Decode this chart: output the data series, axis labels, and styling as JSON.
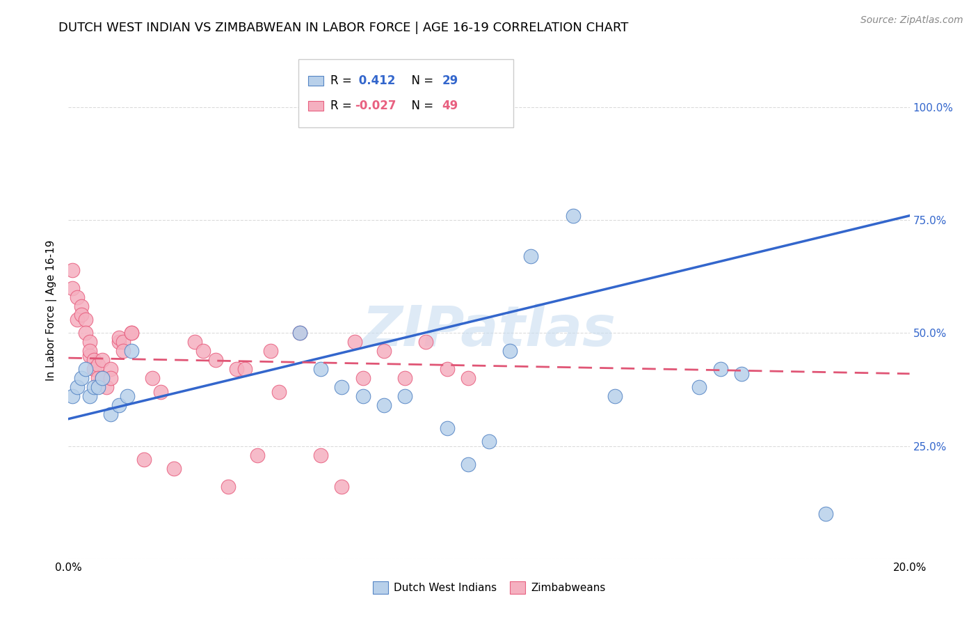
{
  "title": "DUTCH WEST INDIAN VS ZIMBABWEAN IN LABOR FORCE | AGE 16-19 CORRELATION CHART",
  "source": "Source: ZipAtlas.com",
  "ylabel": "In Labor Force | Age 16-19",
  "xlim": [
    0.0,
    0.2
  ],
  "ylim": [
    0.0,
    1.1
  ],
  "yticks": [
    0.0,
    0.25,
    0.5,
    0.75,
    1.0
  ],
  "ytick_labels": [
    "",
    "25.0%",
    "50.0%",
    "75.0%",
    "100.0%"
  ],
  "xticks": [
    0.0,
    0.05,
    0.1,
    0.15,
    0.2
  ],
  "xtick_labels": [
    "0.0%",
    "",
    "",
    "",
    "20.0%"
  ],
  "blue_R": 0.412,
  "blue_N": 29,
  "pink_R": -0.027,
  "pink_N": 49,
  "blue_scatter_x": [
    0.001,
    0.002,
    0.003,
    0.004,
    0.005,
    0.006,
    0.007,
    0.008,
    0.01,
    0.012,
    0.014,
    0.015,
    0.055,
    0.06,
    0.065,
    0.07,
    0.075,
    0.08,
    0.09,
    0.095,
    0.1,
    0.105,
    0.11,
    0.12,
    0.13,
    0.15,
    0.155,
    0.16,
    0.18
  ],
  "blue_scatter_y": [
    0.36,
    0.38,
    0.4,
    0.42,
    0.36,
    0.38,
    0.38,
    0.4,
    0.32,
    0.34,
    0.36,
    0.46,
    0.5,
    0.42,
    0.38,
    0.36,
    0.34,
    0.36,
    0.29,
    0.21,
    0.26,
    0.46,
    0.67,
    0.76,
    0.36,
    0.38,
    0.42,
    0.41,
    0.1
  ],
  "pink_scatter_x": [
    0.001,
    0.001,
    0.002,
    0.002,
    0.003,
    0.003,
    0.004,
    0.004,
    0.005,
    0.005,
    0.005,
    0.006,
    0.006,
    0.007,
    0.007,
    0.008,
    0.008,
    0.009,
    0.01,
    0.01,
    0.012,
    0.012,
    0.013,
    0.013,
    0.015,
    0.015,
    0.018,
    0.02,
    0.022,
    0.025,
    0.03,
    0.032,
    0.035,
    0.038,
    0.04,
    0.042,
    0.045,
    0.048,
    0.05,
    0.055,
    0.06,
    0.065,
    0.068,
    0.07,
    0.075,
    0.08,
    0.085,
    0.09,
    0.095
  ],
  "pink_scatter_y": [
    0.6,
    0.64,
    0.58,
    0.53,
    0.56,
    0.54,
    0.53,
    0.5,
    0.48,
    0.45,
    0.46,
    0.44,
    0.42,
    0.43,
    0.4,
    0.44,
    0.4,
    0.38,
    0.42,
    0.4,
    0.48,
    0.49,
    0.48,
    0.46,
    0.5,
    0.5,
    0.22,
    0.4,
    0.37,
    0.2,
    0.48,
    0.46,
    0.44,
    0.16,
    0.42,
    0.42,
    0.23,
    0.46,
    0.37,
    0.5,
    0.23,
    0.16,
    0.48,
    0.4,
    0.46,
    0.4,
    0.48,
    0.42,
    0.4
  ],
  "blue_color": "#b8d0ea",
  "blue_edge_color": "#5585c5",
  "pink_color": "#f5b0c0",
  "pink_edge_color": "#e86080",
  "blue_line_color": "#3366cc",
  "pink_line_color": "#e05575",
  "watermark_color": "#c8ddf0",
  "grid_color": "#cccccc",
  "background_color": "#ffffff",
  "title_fontsize": 13,
  "label_fontsize": 11,
  "tick_fontsize": 11,
  "source_fontsize": 10,
  "blue_trend_x0": 0.0,
  "blue_trend_y0": 0.31,
  "blue_trend_x1": 0.2,
  "blue_trend_y1": 0.76,
  "pink_trend_x0": 0.0,
  "pink_trend_y0": 0.445,
  "pink_trend_x1": 0.2,
  "pink_trend_y1": 0.41
}
